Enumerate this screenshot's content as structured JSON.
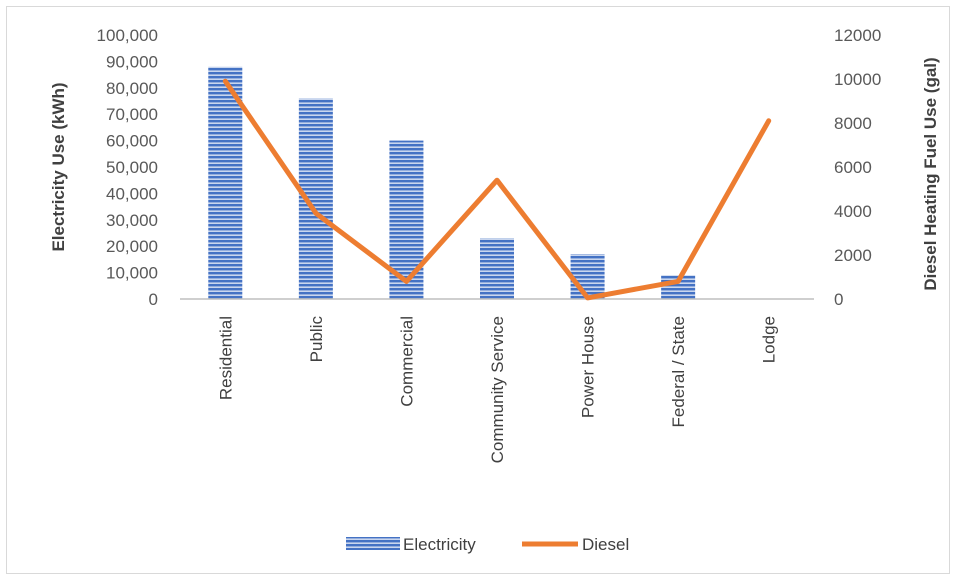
{
  "chart_data": {
    "type": "bar+line",
    "categories": [
      "Residential",
      "Public",
      "Commercial",
      "Community Service",
      "Power House",
      "Federal / State",
      "Lodge"
    ],
    "series": [
      {
        "name": "Electricity",
        "type": "bar",
        "axis": "left",
        "values": [
          88000,
          76000,
          60000,
          23000,
          17000,
          9000,
          0
        ]
      },
      {
        "name": "Diesel",
        "type": "line",
        "axis": "right",
        "values": [
          9900,
          3900,
          800,
          5400,
          50,
          800,
          8100
        ]
      }
    ],
    "ylabel": "Electricity  Use (kWh)",
    "y2label": "Diesel Heating  Fuel Use (gal)",
    "ylim": [
      0,
      100000
    ],
    "y2lim": [
      0,
      12000
    ],
    "yticks": [
      "0",
      "10,000",
      "20,000",
      "30,000",
      "40,000",
      "50,000",
      "60,000",
      "70,000",
      "80,000",
      "90,000",
      "100,000"
    ],
    "y2ticks": [
      "0",
      "2000",
      "4000",
      "6000",
      "8000",
      "10000",
      "12000"
    ],
    "legend_position": "bottom",
    "grid": false,
    "colors": {
      "bar": "#4472c4",
      "bar_stripe": "#c9d6ee",
      "line": "#ed7d31",
      "axis": "#bfbfbf"
    }
  }
}
